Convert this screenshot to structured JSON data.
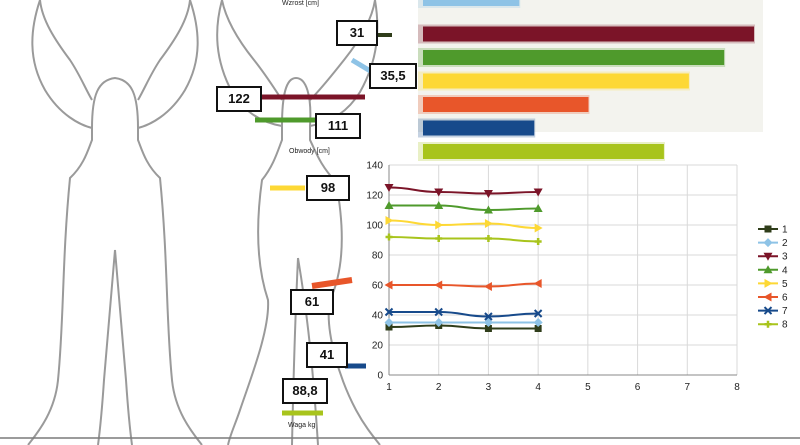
{
  "captions": {
    "height": "Wzrost [cm]",
    "girths": "Obwody [cm]",
    "weight": "Waga kg"
  },
  "labels": {
    "l31": "31",
    "l355": "35,5",
    "l122": "122",
    "l111": "111",
    "l98": "98",
    "l61": "61",
    "l41": "41",
    "l888": "88,8"
  },
  "colors": {
    "s1": "#2f3d1a",
    "s2": "#8ec3e6",
    "s3": "#7b1428",
    "s4": "#4f9a2c",
    "s5": "#fdd835",
    "s6": "#e8562a",
    "s7": "#174a8b",
    "s8": "#a8c41c"
  },
  "chart_data": [
    {
      "type": "bar",
      "orientation": "horizontal",
      "series": [
        {
          "name": "2",
          "value": 35.5
        },
        {
          "name": "3",
          "value": 122
        },
        {
          "name": "4",
          "value": 111
        },
        {
          "name": "5",
          "value": 98
        },
        {
          "name": "6",
          "value": 61
        },
        {
          "name": "7",
          "value": 41
        },
        {
          "name": "8",
          "value": 88.8
        }
      ]
    },
    {
      "type": "line",
      "x": [
        1,
        2,
        3,
        4
      ],
      "xlim": [
        1,
        8
      ],
      "ylim": [
        0,
        140
      ],
      "xticks": [
        1,
        2,
        3,
        4,
        5,
        6,
        7,
        8
      ],
      "yticks": [
        0,
        20,
        40,
        60,
        80,
        100,
        120,
        140
      ],
      "grid": true,
      "legend": "right",
      "series": [
        {
          "name": "1",
          "values": [
            32,
            33,
            31,
            31
          ],
          "marker": "square"
        },
        {
          "name": "2",
          "values": [
            35,
            35,
            35,
            35
          ],
          "marker": "diamond"
        },
        {
          "name": "3",
          "values": [
            125,
            122,
            121,
            122
          ],
          "marker": "triangle-down"
        },
        {
          "name": "4",
          "values": [
            113,
            113,
            110,
            111
          ],
          "marker": "triangle-up"
        },
        {
          "name": "5",
          "values": [
            103,
            100,
            101,
            98
          ],
          "marker": "triangle-right"
        },
        {
          "name": "6",
          "values": [
            60,
            60,
            59,
            61
          ],
          "marker": "triangle-left"
        },
        {
          "name": "7",
          "values": [
            42,
            42,
            39,
            41
          ],
          "marker": "x"
        },
        {
          "name": "8",
          "values": [
            92,
            91,
            91,
            89
          ],
          "marker": "cross"
        }
      ]
    }
  ]
}
